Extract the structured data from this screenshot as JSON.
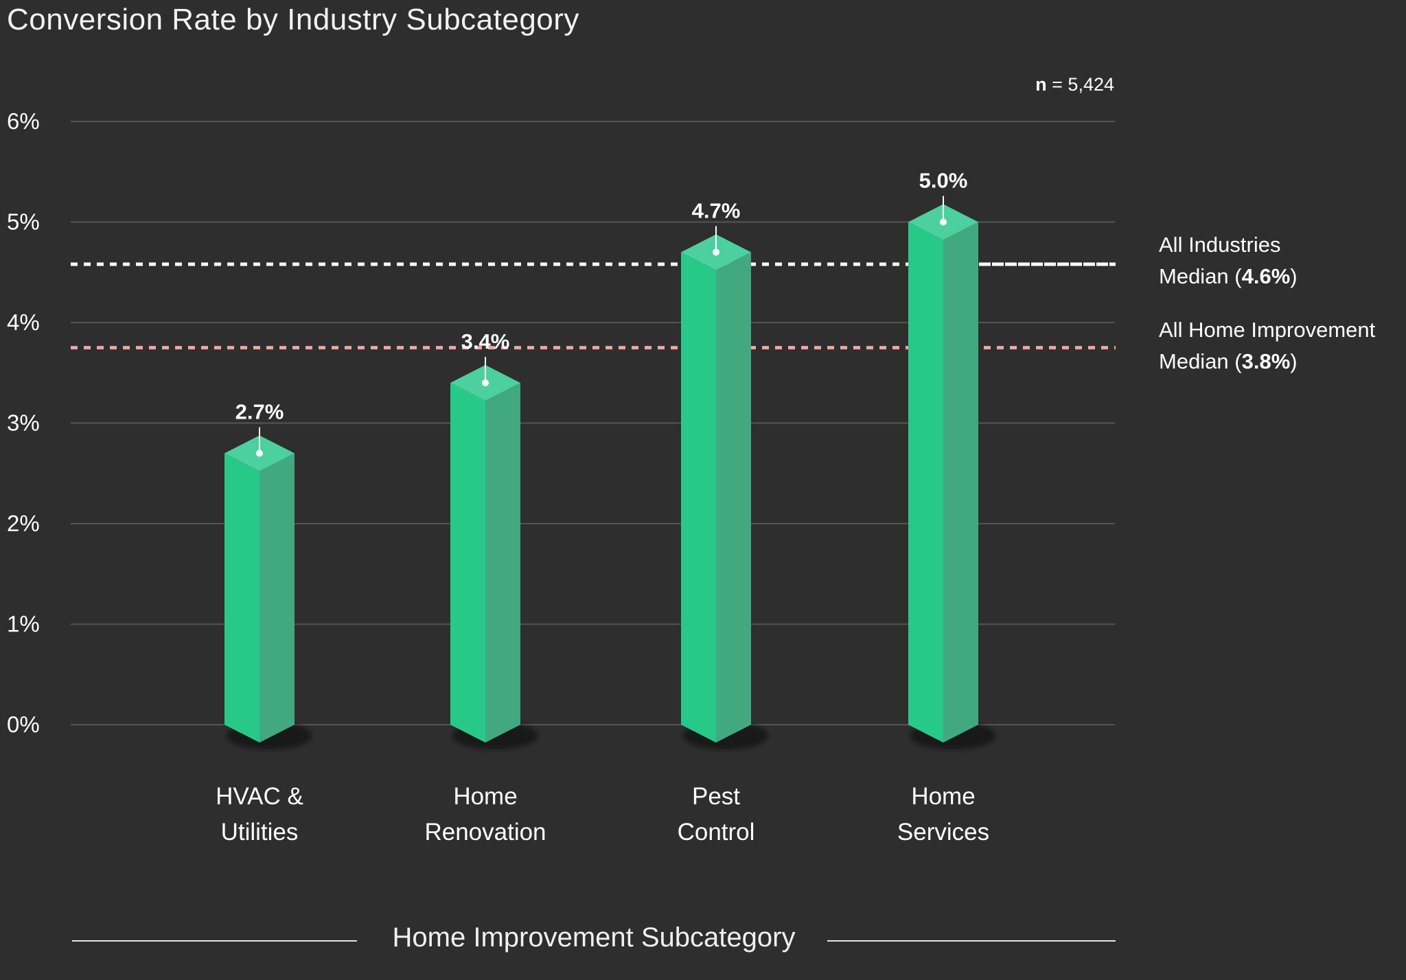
{
  "chart_data": {
    "type": "bar",
    "title": "Conversion Rate by Industry Subcategory",
    "xlabel": "Home Improvement Subcategory",
    "ylabel": "",
    "ylim": [
      0,
      6
    ],
    "y_ticks": [
      "0%",
      "1%",
      "2%",
      "3%",
      "4%",
      "5%",
      "6%"
    ],
    "y_tick_values": [
      0,
      1,
      2,
      3,
      4,
      5,
      6
    ],
    "categories": [
      [
        "HVAC &",
        "Utilities"
      ],
      [
        "Home",
        "Renovation"
      ],
      [
        "Pest",
        "Control"
      ],
      [
        "Home",
        "Services"
      ]
    ],
    "values": [
      2.7,
      3.4,
      4.7,
      5.0
    ],
    "value_labels": [
      "2.7%",
      "3.4%",
      "4.7%",
      "5.0%"
    ],
    "grid": true,
    "sample_size": {
      "label": "n",
      "text": "= 5,424"
    },
    "reference_lines": [
      {
        "label_line1": "All Industries",
        "label_prefix": "Median (",
        "label_value": "4.6%",
        "label_suffix": ")",
        "value": 4.58,
        "color": "#ffffff"
      },
      {
        "label_line1": "All Home Improvement",
        "label_prefix": "Median (",
        "label_value": "3.8%",
        "label_suffix": ")",
        "value": 3.75,
        "color": "#f2a5a0"
      }
    ],
    "colors": {
      "bar_front": "#27c989",
      "bar_side": "#42a880",
      "bar_top": "#4cd0a0",
      "grid": "#555555",
      "background": "#2e2e2e"
    }
  }
}
